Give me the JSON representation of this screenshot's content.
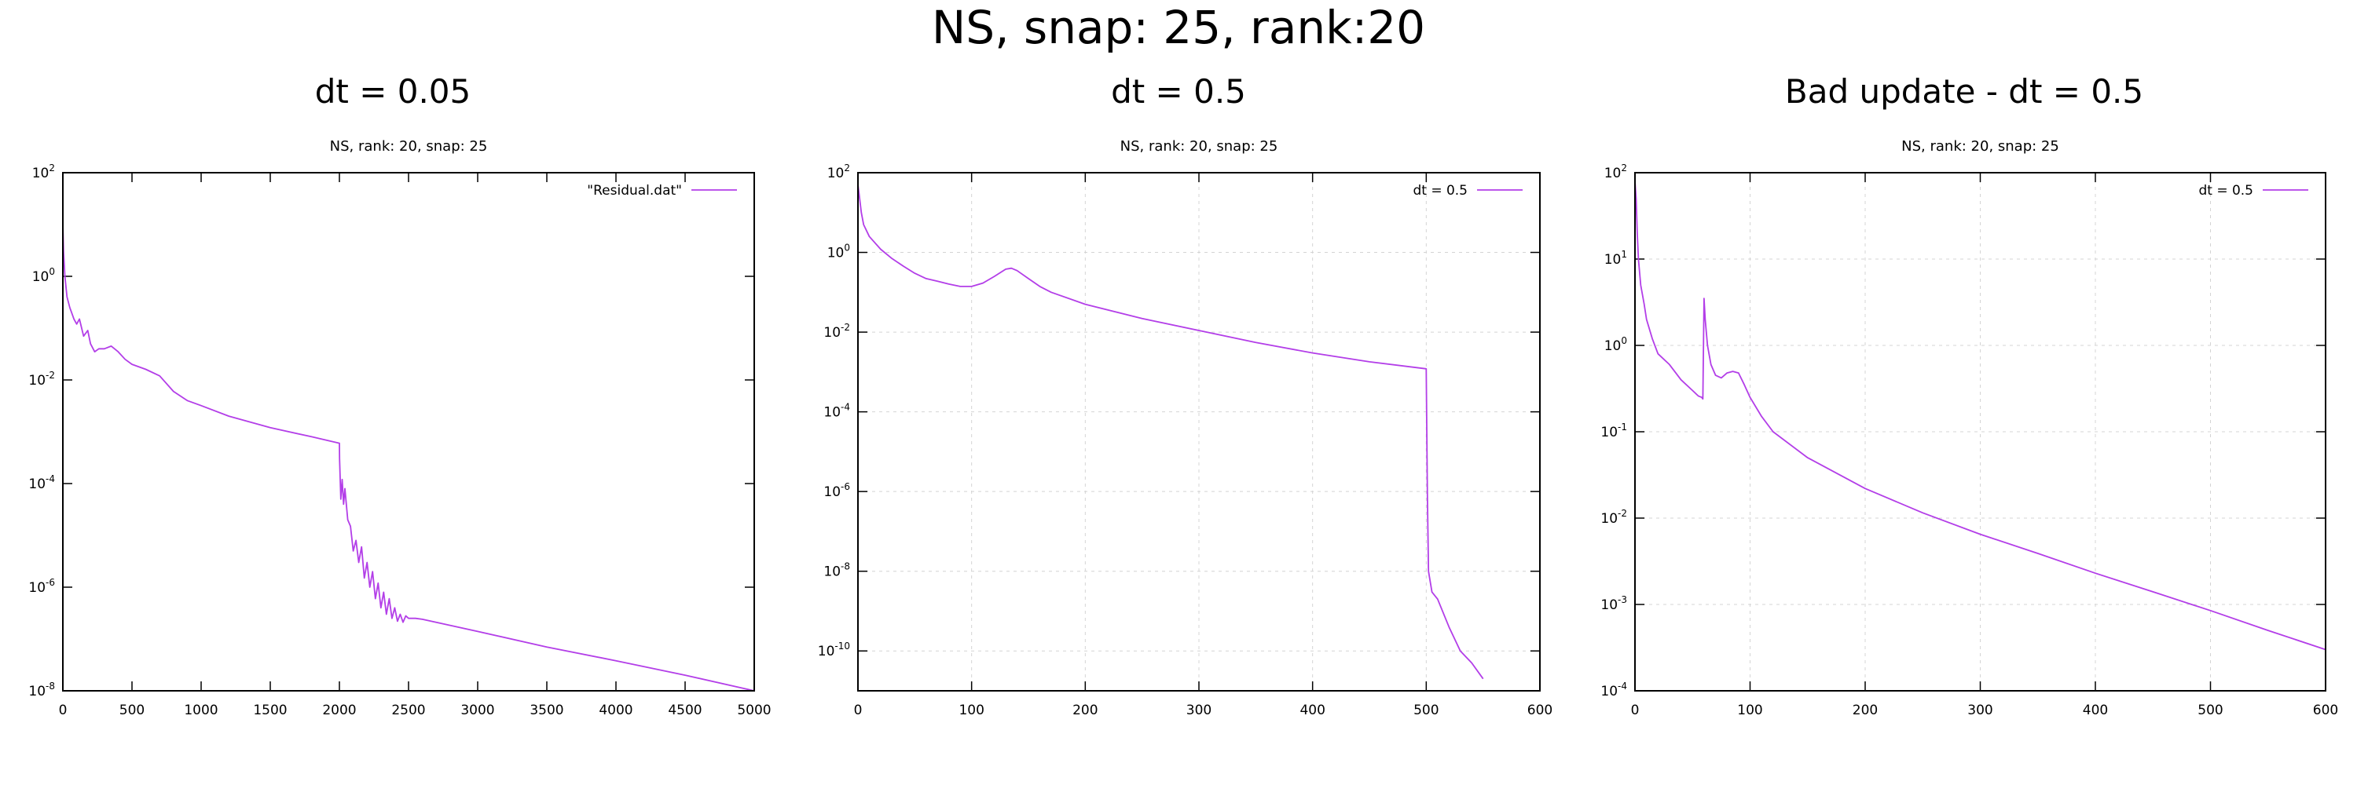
{
  "title": "NS, snap: 25, rank:20",
  "colors": {
    "series": "#b33ee8",
    "grid": "#d4d4d4",
    "axis": "#000000"
  },
  "chart_data": [
    {
      "type": "line",
      "panel_title": "dt = 0.05",
      "title": "NS, rank: 20, snap: 25",
      "xlim": [
        0,
        5000
      ],
      "ylim": [
        1e-08,
        100
      ],
      "y_scale": "log",
      "grid": false,
      "legend_position": "top-right",
      "x_ticks": [
        "0",
        "500",
        "1000",
        "1500",
        "2000",
        "2500",
        "3000",
        "3500",
        "4000",
        "4500",
        "5000"
      ],
      "y_ticks": [
        {
          "base": "10",
          "exp": "2"
        },
        {
          "base": "10",
          "exp": "0"
        },
        {
          "base": "10",
          "exp": "-2"
        },
        {
          "base": "10",
          "exp": "-4"
        },
        {
          "base": "10",
          "exp": "-6"
        },
        {
          "base": "10",
          "exp": "-8"
        }
      ],
      "series": [
        {
          "name": "\"Residual.dat\"",
          "x": [
            0,
            5,
            15,
            30,
            50,
            80,
            100,
            120,
            150,
            180,
            200,
            230,
            260,
            300,
            350,
            400,
            450,
            500,
            600,
            700,
            800,
            900,
            1000,
            1200,
            1500,
            1800,
            2000,
            2001,
            2010,
            2020,
            2030,
            2040,
            2060,
            2080,
            2100,
            2120,
            2140,
            2160,
            2180,
            2200,
            2220,
            2240,
            2260,
            2280,
            2300,
            2320,
            2340,
            2360,
            2380,
            2400,
            2420,
            2440,
            2460,
            2480,
            2500,
            2550,
            2600,
            3000,
            3500,
            4000,
            4500,
            5000
          ],
          "y": [
            10,
            3,
            1,
            0.4,
            0.25,
            0.15,
            0.12,
            0.15,
            0.07,
            0.09,
            0.05,
            0.035,
            0.04,
            0.04,
            0.045,
            0.035,
            0.025,
            0.02,
            0.016,
            0.012,
            0.006,
            0.004,
            0.0032,
            0.002,
            0.0012,
            0.0008,
            0.0006,
            0.0003,
            5e-05,
            0.00012,
            4e-05,
            8e-05,
            2e-05,
            1.5e-05,
            5e-06,
            8e-06,
            3e-06,
            6e-06,
            1.5e-06,
            3e-06,
            1e-06,
            2e-06,
            6e-07,
            1.2e-06,
            4e-07,
            8e-07,
            3e-07,
            6e-07,
            2.5e-07,
            4e-07,
            2.2e-07,
            3e-07,
            2.1e-07,
            2.8e-07,
            2.5e-07,
            2.5e-07,
            2.4e-07,
            1.4e-07,
            7e-08,
            3.8e-08,
            2e-08,
            1e-08
          ]
        }
      ]
    },
    {
      "type": "line",
      "panel_title": "dt = 0.5",
      "title": "NS, rank: 20, snap: 25",
      "xlim": [
        0,
        600
      ],
      "ylim": [
        1e-11,
        100
      ],
      "y_scale": "log",
      "grid": true,
      "legend_position": "top-right",
      "x_ticks": [
        "0",
        "100",
        "200",
        "300",
        "400",
        "500",
        "600"
      ],
      "y_ticks": [
        {
          "base": "10",
          "exp": "2"
        },
        {
          "base": "10",
          "exp": "0"
        },
        {
          "base": "10",
          "exp": "-2"
        },
        {
          "base": "10",
          "exp": "-4"
        },
        {
          "base": "10",
          "exp": "-6"
        },
        {
          "base": "10",
          "exp": "-8"
        },
        {
          "base": "10",
          "exp": "-10"
        }
      ],
      "series": [
        {
          "name": "dt = 0.5",
          "x": [
            0,
            1,
            3,
            5,
            10,
            20,
            30,
            40,
            50,
            60,
            70,
            80,
            90,
            100,
            110,
            120,
            130,
            135,
            140,
            150,
            160,
            170,
            200,
            250,
            300,
            350,
            400,
            450,
            500,
            501,
            502,
            505,
            510,
            520,
            530,
            540,
            550
          ],
          "y": [
            50,
            30,
            10,
            5,
            2.5,
            1.2,
            0.7,
            0.45,
            0.3,
            0.22,
            0.19,
            0.16,
            0.14,
            0.14,
            0.17,
            0.25,
            0.38,
            0.4,
            0.35,
            0.22,
            0.14,
            0.1,
            0.05,
            0.022,
            0.011,
            0.0055,
            0.003,
            0.0018,
            0.0012,
            8e-07,
            1e-08,
            3e-09,
            2e-09,
            4e-10,
            1e-10,
            5e-11,
            2e-11
          ]
        }
      ]
    },
    {
      "type": "line",
      "panel_title": "Bad update - dt = 0.5",
      "title": "NS, rank: 20, snap: 25",
      "xlim": [
        0,
        600
      ],
      "ylim": [
        0.0001,
        100
      ],
      "y_scale": "log",
      "grid": true,
      "legend_position": "top-right",
      "x_ticks": [
        "0",
        "100",
        "200",
        "300",
        "400",
        "500",
        "600"
      ],
      "y_ticks": [
        {
          "base": "10",
          "exp": "2"
        },
        {
          "base": "10",
          "exp": "1"
        },
        {
          "base": "10",
          "exp": "0"
        },
        {
          "base": "10",
          "exp": "-1"
        },
        {
          "base": "10",
          "exp": "-2"
        },
        {
          "base": "10",
          "exp": "-3"
        },
        {
          "base": "10",
          "exp": "-4"
        }
      ],
      "series": [
        {
          "name": "dt = 0.5",
          "x": [
            0,
            1,
            2,
            3,
            5,
            8,
            10,
            15,
            20,
            30,
            40,
            50,
            55,
            58,
            59,
            60,
            61,
            63,
            66,
            70,
            75,
            80,
            85,
            90,
            95,
            100,
            110,
            120,
            150,
            200,
            250,
            300,
            350,
            400,
            450,
            500,
            550,
            600
          ],
          "y": [
            80,
            50,
            20,
            10,
            5,
            3,
            2,
            1.2,
            0.8,
            0.6,
            0.4,
            0.3,
            0.26,
            0.25,
            0.24,
            3.5,
            2.0,
            1.0,
            0.6,
            0.45,
            0.42,
            0.48,
            0.5,
            0.48,
            0.35,
            0.25,
            0.15,
            0.1,
            0.05,
            0.022,
            0.0115,
            0.0065,
            0.0039,
            0.0023,
            0.0014,
            0.00085,
            0.0005,
            0.0003
          ]
        }
      ]
    }
  ]
}
